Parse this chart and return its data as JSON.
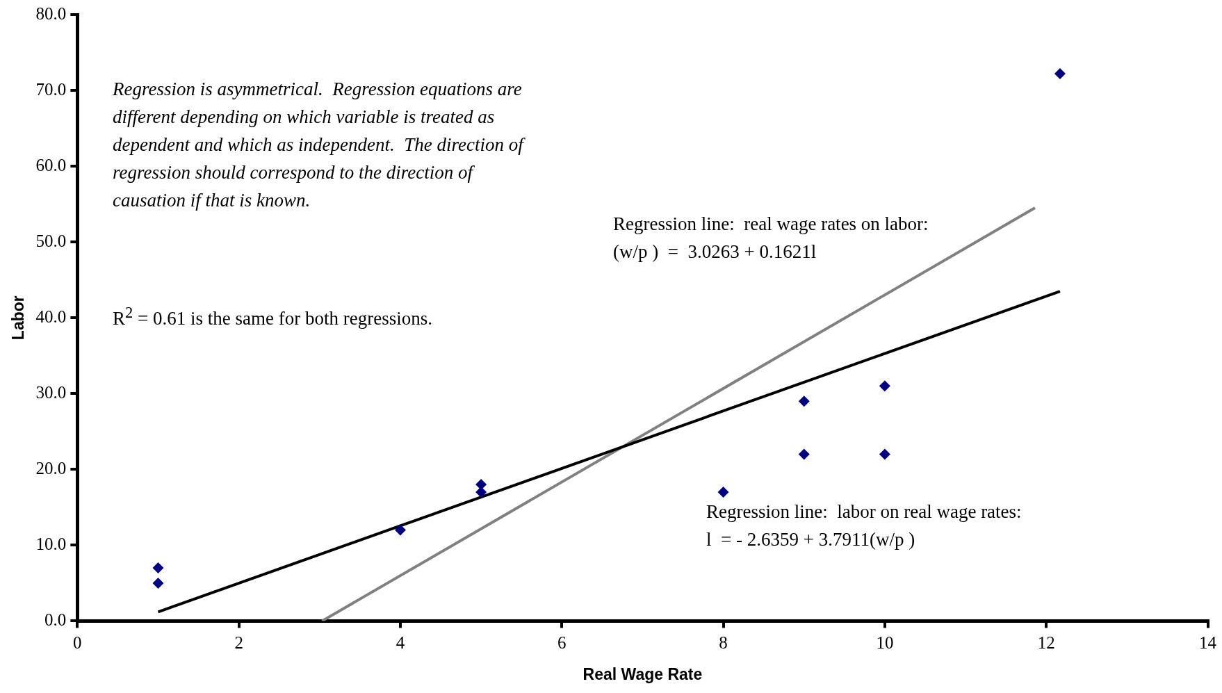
{
  "chart_data": {
    "type": "scatter",
    "xlabel": "Real Wage Rate",
    "ylabel": "Labor",
    "xlim": [
      0,
      14
    ],
    "xticks": [
      0,
      2,
      4,
      6,
      8,
      10,
      12,
      14
    ],
    "ylim": [
      0,
      80
    ],
    "yticks": [
      {
        "value": 0,
        "label": "0.0"
      },
      {
        "value": 10,
        "label": "10.0"
      },
      {
        "value": 20,
        "label": "20.0"
      },
      {
        "value": 30,
        "label": "30.0"
      },
      {
        "value": 40,
        "label": "40.0"
      },
      {
        "value": 50,
        "label": "50.0"
      },
      {
        "value": 60,
        "label": "60.0"
      },
      {
        "value": 70,
        "label": "70.0"
      },
      {
        "value": 80,
        "label": "80.0"
      }
    ],
    "grid": false,
    "legend": false,
    "marker": "diamond",
    "series": [
      {
        "type": "scatter",
        "color": "#000080",
        "x": [
          1,
          1,
          4,
          5,
          5,
          8,
          9,
          9,
          10,
          10,
          12.17
        ],
        "values": [
          7,
          5,
          12,
          18,
          17,
          17,
          29,
          22,
          31,
          22,
          72.2
        ]
      },
      {
        "type": "line",
        "color": "#000000",
        "marker": "none",
        "x": [
          1,
          12.17
        ],
        "values": [
          1.2,
          43.5
        ]
      },
      {
        "type": "line",
        "color": "#808080",
        "marker": "none",
        "x": [
          3.03,
          11.86
        ],
        "values": [
          0,
          54.5
        ]
      }
    ],
    "annotations": [
      "Regression is asymmetrical.  Regression equations are different depending on which variable is treated as dependent and which as independent.  The direction of regression should correspond to the direction of causation if that is known.",
      "R$^{2}$ = 0.61 is the same for both regressions.",
      "Regression line:  real wage rates on labor:\n(w/p )  =  3.0263 + 0.1621l",
      "Regression line:  labor on real wage rates:\nl  = - 2.6359 + 3.7911(w/p )"
    ]
  }
}
